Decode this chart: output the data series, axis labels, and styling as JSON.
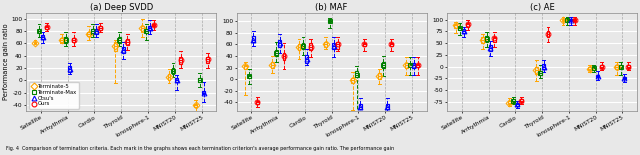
{
  "title_a": "(a) Deep SVDD",
  "title_b": "(b) MAF",
  "title_c": "(c) AE",
  "ylabel": "Performance gain ratio",
  "caption": "Fig. 4  Comparison of termination criteria. Each mark in the graphs shows each termination criterion's average performance gain ratio. The performance gain",
  "categories": [
    "Satellite",
    "Arrhythmia",
    "Cardio",
    "Thyroid",
    "Ionosphere-1",
    "MNIST20",
    "MNIST25"
  ],
  "criteria": [
    "Terminate-5",
    "Terminate-Max",
    "Otsu's",
    "Ours"
  ],
  "colors": [
    "#FFA500",
    "#008000",
    "#0000FF",
    "#FF0000"
  ],
  "markers": [
    "D",
    "s",
    "^",
    "o"
  ],
  "svdd": {
    "whislo": [
      [
        60,
        60,
        65,
        -5,
        70,
        -5,
        -100
      ],
      [
        70,
        55,
        70,
        55,
        65,
        5,
        -10
      ],
      [
        60,
        10,
        70,
        35,
        75,
        -15,
        -35
      ],
      [
        80,
        55,
        78,
        50,
        82,
        20,
        20
      ]
    ],
    "q1": [
      [
        59,
        62,
        72,
        48,
        78,
        0,
        -43
      ],
      [
        77,
        60,
        76,
        60,
        77,
        10,
        -2
      ],
      [
        67,
        13,
        76,
        44,
        82,
        -2,
        -22
      ],
      [
        83,
        62,
        82,
        57,
        88,
        27,
        28
      ]
    ],
    "med": [
      [
        60,
        65,
        75,
        55,
        85,
        5,
        -40
      ],
      [
        80,
        65,
        80,
        65,
        80,
        15,
        0
      ],
      [
        70,
        18,
        80,
        50,
        85,
        0,
        -20
      ],
      [
        86,
        65,
        85,
        62,
        90,
        33,
        35
      ]
    ],
    "q3": [
      [
        62,
        68,
        78,
        62,
        88,
        10,
        -38
      ],
      [
        83,
        70,
        84,
        70,
        83,
        20,
        3
      ],
      [
        73,
        24,
        83,
        54,
        88,
        4,
        -17
      ],
      [
        88,
        68,
        88,
        67,
        92,
        38,
        38
      ]
    ],
    "whishi": [
      [
        65,
        75,
        88,
        65,
        100,
        18,
        -32
      ],
      [
        92,
        78,
        92,
        78,
        92,
        28,
        12
      ],
      [
        78,
        28,
        92,
        62,
        98,
        8,
        -3
      ],
      [
        93,
        78,
        93,
        75,
        98,
        48,
        45
      ]
    ]
  },
  "maf": {
    "whislo": [
      [
        -28,
        10,
        35,
        52,
        -53,
        -8,
        8
      ],
      [
        -8,
        30,
        42,
        88,
        -60,
        5,
        8
      ],
      [
        58,
        45,
        24,
        38,
        -60,
        -55,
        8
      ],
      [
        -48,
        18,
        38,
        48,
        48,
        48,
        8
      ]
    ],
    "q1": [
      [
        18,
        20,
        50,
        56,
        -6,
        0,
        20
      ],
      [
        2,
        40,
        52,
        98,
        4,
        20,
        21
      ],
      [
        64,
        55,
        28,
        52,
        -52,
        -52,
        20
      ],
      [
        -43,
        34,
        50,
        53,
        57,
        57,
        21
      ]
    ],
    "med": [
      [
        22,
        25,
        55,
        60,
        -2,
        5,
        24
      ],
      [
        5,
        45,
        57,
        100,
        8,
        25,
        24
      ],
      [
        68,
        62,
        35,
        58,
        -48,
        -47,
        24
      ],
      [
        -40,
        40,
        56,
        60,
        60,
        60,
        24
      ]
    ],
    "q3": [
      [
        25,
        30,
        60,
        65,
        3,
        10,
        28
      ],
      [
        8,
        50,
        62,
        103,
        14,
        30,
        27
      ],
      [
        74,
        67,
        42,
        63,
        -42,
        -42,
        28
      ],
      [
        -37,
        45,
        62,
        65,
        63,
        63,
        27
      ]
    ],
    "whishi": [
      [
        30,
        40,
        70,
        72,
        12,
        18,
        38
      ],
      [
        18,
        65,
        72,
        106,
        22,
        40,
        38
      ],
      [
        83,
        78,
        52,
        73,
        -32,
        -32,
        38
      ],
      [
        -30,
        62,
        70,
        72,
        70,
        70,
        38
      ]
    ]
  },
  "ae": {
    "whislo": [
      [
        72,
        38,
        -83,
        -30,
        88,
        -12,
        -18
      ],
      [
        68,
        42,
        -80,
        -25,
        88,
        -12,
        -18
      ],
      [
        62,
        22,
        -88,
        -12,
        88,
        -28,
        -32
      ],
      [
        78,
        42,
        -80,
        52,
        88,
        -8,
        -8
      ]
    ],
    "q1": [
      [
        82,
        50,
        -80,
        -15,
        97,
        -8,
        -5
      ],
      [
        77,
        52,
        -76,
        -18,
        97,
        -8,
        -4
      ],
      [
        72,
        33,
        -83,
        -6,
        97,
        -22,
        -26
      ],
      [
        85,
        52,
        -76,
        62,
        97,
        -3,
        -3
      ]
    ],
    "med": [
      [
        88,
        57,
        -77,
        -8,
        100,
        -5,
        -2
      ],
      [
        82,
        59,
        -73,
        -14,
        100,
        -3,
        -2
      ],
      [
        76,
        40,
        -80,
        0,
        100,
        -20,
        -24
      ],
      [
        90,
        60,
        -73,
        70,
        100,
        0,
        0
      ]
    ],
    "q3": [
      [
        90,
        62,
        -74,
        0,
        102,
        -2,
        4
      ],
      [
        85,
        65,
        -70,
        -10,
        102,
        -2,
        4
      ],
      [
        79,
        46,
        -77,
        5,
        102,
        -17,
        -22
      ],
      [
        93,
        64,
        -70,
        76,
        102,
        3,
        3
      ]
    ],
    "whishi": [
      [
        95,
        70,
        -68,
        14,
        105,
        4,
        10
      ],
      [
        92,
        73,
        -64,
        4,
        105,
        4,
        10
      ],
      [
        84,
        55,
        -74,
        14,
        105,
        -10,
        -16
      ],
      [
        100,
        73,
        -64,
        84,
        105,
        10,
        9
      ]
    ]
  },
  "ylim_a": [
    -50,
    110
  ],
  "ylim_b": [
    -55,
    115
  ],
  "ylim_c": [
    -95,
    115
  ],
  "yticks_a": [
    -40,
    -20,
    0,
    20,
    40,
    60,
    80,
    100
  ],
  "yticks_b": [
    -40,
    -20,
    0,
    20,
    40,
    60,
    80,
    100
  ],
  "yticks_c": [
    -75,
    -50,
    -25,
    0,
    25,
    50,
    75,
    100
  ],
  "bg_color": "#e8e8e8",
  "grid_color": "#ffffff",
  "offsets": [
    -0.22,
    -0.07,
    0.07,
    0.22
  ],
  "box_width": 0.11,
  "markersize": 3.5,
  "linewidth": 0.7
}
